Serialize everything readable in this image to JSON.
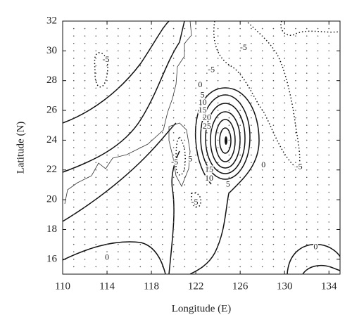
{
  "chart_data": {
    "type": "contour",
    "x_label": "Longitude (E)",
    "y_label": "Latitude (N)",
    "xlim": [
      110,
      135
    ],
    "ylim": [
      15,
      32
    ],
    "xticks": [
      110,
      114,
      118,
      122,
      126,
      130,
      134
    ],
    "yticks": [
      16,
      18,
      20,
      22,
      24,
      26,
      28,
      30,
      32
    ],
    "grid": true,
    "contour_labels": [
      {
        "level": -5,
        "lon": 113.9,
        "lat": 29.4
      },
      {
        "level": -5,
        "lon": 126.3,
        "lat": 30.2
      },
      {
        "level": -5,
        "lon": 123.4,
        "lat": 28.7
      },
      {
        "level": 0,
        "lon": 122.4,
        "lat": 27.7
      },
      {
        "level": 5,
        "lon": 122.6,
        "lat": 27.0
      },
      {
        "level": 10,
        "lon": 122.6,
        "lat": 26.5
      },
      {
        "level": 15,
        "lon": 122.6,
        "lat": 26.0
      },
      {
        "level": 20,
        "lon": 123.0,
        "lat": 25.5
      },
      {
        "level": 25,
        "lon": 123.0,
        "lat": 24.9
      },
      {
        "level": 5,
        "lon": 121.5,
        "lat": 22.7
      },
      {
        "level": -5,
        "lon": 120.1,
        "lat": 22.5
      },
      {
        "level": 15,
        "lon": 123.2,
        "lat": 22.0
      },
      {
        "level": 10,
        "lon": 123.2,
        "lat": 21.4
      },
      {
        "level": 5,
        "lon": 124.9,
        "lat": 21.0
      },
      {
        "level": 0,
        "lon": 128.1,
        "lat": 22.3
      },
      {
        "level": -5,
        "lon": 131.3,
        "lat": 22.2
      },
      {
        "level": -5,
        "lon": 121.9,
        "lat": 19.8
      },
      {
        "level": 0,
        "lon": 114.0,
        "lat": 16.1
      },
      {
        "level": 0,
        "lon": 132.8,
        "lat": 16.8
      }
    ]
  }
}
